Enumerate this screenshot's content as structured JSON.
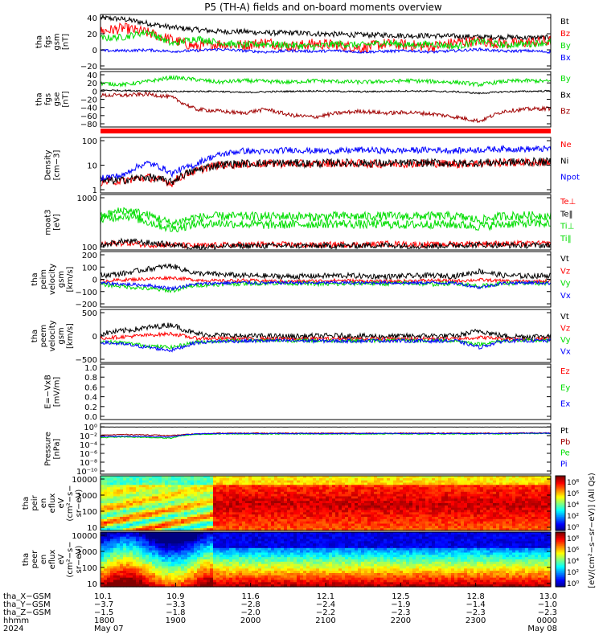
{
  "title": "P5 (TH-A) fields and on-board moments overview",
  "colors": {
    "black": "#000000",
    "red": "#ff0000",
    "green": "#00dd00",
    "blue": "#0000ff",
    "darkred": "#a00000"
  },
  "chart_data": [
    {
      "type": "line",
      "name": "tha_fgs_gsm",
      "ylabel": [
        "tha",
        "fgs",
        "gsm",
        "[nT]"
      ],
      "y_ticks": [
        "40",
        "20",
        "0",
        "−20"
      ],
      "ylim": [
        -25,
        55
      ],
      "series": [
        {
          "name": "Bt",
          "color": "#000000",
          "base": [
            50,
            48,
            42,
            36,
            33,
            30,
            30,
            28,
            28,
            27,
            26,
            25,
            25,
            24,
            24,
            23,
            22,
            22,
            21,
            21
          ],
          "noise": 4
        },
        {
          "name": "Bz",
          "color": "#ff0000",
          "base": [
            30,
            35,
            28,
            18,
            8,
            12,
            10,
            14,
            8,
            12,
            10,
            6,
            12,
            10,
            8,
            14,
            16,
            12,
            14,
            16
          ],
          "noise": 8
        },
        {
          "name": "By",
          "color": "#00dd00",
          "base": [
            20,
            22,
            30,
            12,
            20,
            14,
            10,
            12,
            10,
            8,
            12,
            10,
            14,
            10,
            12,
            8,
            16,
            10,
            12,
            14
          ],
          "noise": 5
        },
        {
          "name": "Bx",
          "color": "#0000ff",
          "base": [
            2,
            2,
            3,
            1,
            2,
            4,
            2,
            0,
            2,
            1,
            2,
            0,
            1,
            2,
            0,
            2,
            4,
            1,
            2,
            0
          ],
          "noise": 2
        }
      ]
    },
    {
      "type": "line",
      "name": "tha_fgs_gse",
      "ylabel": [
        "tha",
        "fgs",
        "gse",
        "[nT]"
      ],
      "y_ticks": [
        "40",
        "20",
        "0",
        "−20",
        "−40",
        "−60",
        "−80"
      ],
      "ylim": [
        -95,
        45
      ],
      "series": [
        {
          "name": "By",
          "color": "#00dd00",
          "base": [
            15,
            12,
            20,
            30,
            25,
            18,
            22,
            20,
            18,
            22,
            20,
            18,
            20,
            22,
            20,
            18,
            12,
            20,
            22,
            20
          ],
          "noise": 5
        },
        {
          "name": "Bx",
          "color": "#000000",
          "base": [
            -2,
            -3,
            -4,
            -6,
            -5,
            -5,
            -8,
            -6,
            -5,
            -4,
            -5,
            -6,
            -5,
            -4,
            -5,
            -6,
            -10,
            -6,
            -5,
            -4
          ],
          "noise": 2
        },
        {
          "name": "Bz",
          "color": "#a00000",
          "base": [
            -15,
            -15,
            -12,
            -20,
            -50,
            -55,
            -60,
            -50,
            -65,
            -70,
            -60,
            -55,
            -60,
            -58,
            -62,
            -70,
            -80,
            -55,
            -50,
            -48
          ],
          "noise": 5
        }
      ]
    },
    {
      "type": "line",
      "name": "Density",
      "ylabel": [
        "Density",
        "[cm−3]"
      ],
      "scale": "log",
      "y_ticks": [
        "100",
        "10",
        "1"
      ],
      "ylim": [
        0.35,
        180
      ],
      "series": [
        {
          "name": "Ne",
          "color": "#ff0000",
          "base": [
            1.2,
            1.4,
            2.0,
            1.0,
            4.0,
            8.0,
            9.0,
            9.5,
            9.5,
            9.0,
            10.0,
            9.5,
            9.0,
            9.5,
            10.0,
            9.0,
            10.0,
            10.5,
            11.0,
            11.0
          ],
          "noise": 0.2
        },
        {
          "name": "Ni",
          "color": "#000000",
          "base": [
            1.3,
            1.5,
            2.1,
            1.1,
            4.2,
            8.5,
            9.5,
            10.0,
            10.0,
            9.5,
            10.5,
            10.0,
            9.5,
            10.0,
            10.5,
            9.5,
            10.5,
            11.0,
            11.5,
            11.5
          ],
          "noise": 0.2
        },
        {
          "name": "Npot",
          "color": "#0000ff",
          "base": [
            2.0,
            2.5,
            10.0,
            3.0,
            8.0,
            25.0,
            40.0,
            35.0,
            45.0,
            40.0,
            38.0,
            45.0,
            40.0,
            42.0,
            45.0,
            40.0,
            45.0,
            50.0,
            48.0,
            50.0
          ],
          "noise": 0.15
        }
      ]
    },
    {
      "type": "line",
      "name": "Temperature",
      "ylabel": [
        "moat3",
        "[eV]"
      ],
      "scale": "log",
      "y_ticks": [
        "1000",
        "100"
      ],
      "ylim": [
        40,
        3000
      ],
      "series": [
        {
          "name": "Te⊥",
          "color": "#ff0000",
          "base": [
            60,
            70,
            60,
            60,
            55,
            58,
            60,
            62,
            60,
            58,
            62,
            60,
            65,
            62,
            60,
            64,
            66,
            65,
            64,
            65
          ],
          "noise": 0.1
        },
        {
          "name": "Te‖",
          "color": "#000000",
          "base": [
            55,
            80,
            70,
            60,
            50,
            52,
            55,
            55,
            56,
            54,
            55,
            56,
            58,
            55,
            54,
            58,
            60,
            58,
            57,
            58
          ],
          "noise": 0.1
        },
        {
          "name": "Ti⊥",
          "color": "#00dd00",
          "base": [
            400,
            600,
            350,
            200,
            300,
            320,
            300,
            280,
            290,
            300,
            310,
            290,
            300,
            280,
            300,
            290,
            250,
            300,
            320,
            310
          ],
          "noise": 0.15
        },
        {
          "name": "Ti‖",
          "color": "#00dd00",
          "base": [
            500,
            900,
            600,
            300,
            500,
            550,
            550,
            540,
            560,
            520,
            560,
            540,
            560,
            550,
            560,
            550,
            400,
            560,
            580,
            570
          ],
          "noise": 0.15
        }
      ]
    },
    {
      "type": "line",
      "name": "tha_peim_velocity_gsm",
      "ylabel": [
        "tha",
        "peim",
        "velocity",
        "gsm",
        "[km/s]"
      ],
      "y_ticks": [
        "200",
        "100",
        "0",
        "−100",
        "−200"
      ],
      "ylim": [
        -230,
        280
      ],
      "series": [
        {
          "name": "Vt",
          "color": "#000000",
          "base": [
            60,
            80,
            120,
            150,
            80,
            70,
            60,
            55,
            50,
            55,
            60,
            55,
            50,
            55,
            60,
            55,
            100,
            60,
            55,
            60
          ],
          "noise": 25
        },
        {
          "name": "Vz",
          "color": "#ff0000",
          "base": [
            10,
            20,
            30,
            40,
            20,
            10,
            15,
            10,
            5,
            10,
            15,
            10,
            5,
            10,
            15,
            10,
            20,
            10,
            5,
            10
          ],
          "noise": 15
        },
        {
          "name": "Vy",
          "color": "#00dd00",
          "base": [
            -20,
            -40,
            -60,
            -80,
            -30,
            -20,
            -15,
            -10,
            -10,
            -15,
            -20,
            -10,
            -15,
            -10,
            -20,
            -10,
            -40,
            -10,
            -15,
            -10
          ],
          "noise": 20
        },
        {
          "name": "Vx",
          "color": "#0000ff",
          "base": [
            -10,
            -20,
            -30,
            -60,
            -20,
            -10,
            -5,
            -10,
            -5,
            -10,
            -5,
            -10,
            -5,
            -10,
            -5,
            -10,
            -50,
            -10,
            -5,
            -10
          ],
          "noise": 15
        }
      ]
    },
    {
      "type": "line",
      "name": "tha_peem_velocity_gsm",
      "ylabel": [
        "tha",
        "peem",
        "velocity",
        "gsm",
        "[km/s]"
      ],
      "y_ticks": [
        "500",
        "0",
        "−500"
      ],
      "ylim": [
        -750,
        1000
      ],
      "series": [
        {
          "name": "Vt",
          "color": "#000000",
          "base": [
            200,
            300,
            400,
            500,
            200,
            150,
            120,
            120,
            110,
            120,
            130,
            120,
            110,
            120,
            130,
            120,
            300,
            120,
            110,
            120
          ],
          "noise": 90
        },
        {
          "name": "Vz",
          "color": "#ff0000",
          "base": [
            50,
            100,
            150,
            200,
            50,
            40,
            30,
            30,
            25,
            30,
            35,
            30,
            25,
            30,
            35,
            30,
            80,
            30,
            25,
            30
          ],
          "noise": 60
        },
        {
          "name": "Vy",
          "color": "#00dd00",
          "base": [
            -50,
            -100,
            -200,
            -250,
            -80,
            -40,
            -30,
            -30,
            -25,
            -30,
            -35,
            -30,
            -25,
            -30,
            -35,
            -30,
            -150,
            -30,
            -25,
            -30
          ],
          "noise": 60
        },
        {
          "name": "Vx",
          "color": "#0000ff",
          "base": [
            -80,
            -150,
            -250,
            -350,
            -100,
            -50,
            -40,
            -35,
            -30,
            -35,
            -40,
            -35,
            -30,
            -35,
            -40,
            -35,
            -250,
            -35,
            -30,
            -35
          ],
          "noise": 60
        }
      ]
    },
    {
      "type": "line",
      "name": "E_minus_VxB",
      "ylabel": [
        "E=−VxB",
        "[mV/m]"
      ],
      "y_ticks": [
        "1.0",
        "0.8",
        "0.6",
        "0.4",
        "0.2",
        "0.0"
      ],
      "ylim": [
        0,
        1
      ],
      "legend": [
        "Ez",
        "Ey",
        "Ex"
      ],
      "legend_colors": [
        "#ff0000",
        "#00dd00",
        "#0000ff"
      ],
      "series": []
    },
    {
      "type": "line",
      "name": "Pressure",
      "ylabel": [
        "Pressure",
        "[nPa]"
      ],
      "scale": "log",
      "y_ticks": [
        "10⁰",
        "10⁻²",
        "10⁻⁴",
        "10⁻⁶",
        "10⁻⁸",
        "10⁻¹⁰"
      ],
      "ylim": [
        1e-11,
        5
      ],
      "series": [
        {
          "name": "Pt",
          "color": "#000000",
          "base": [
            0.8,
            0.8,
            0.8,
            0.8,
            0.8,
            0.8,
            0.8,
            0.8,
            0.8,
            0.8,
            0.8,
            0.8,
            0.8,
            0.8,
            0.8,
            0.8,
            0.8,
            0.8,
            0.8,
            0.8
          ],
          "noise": 0.02
        },
        {
          "name": "Pb",
          "color": "#a00000",
          "base": [
            0.01,
            0.015,
            0.012,
            0.008,
            0.02,
            0.03,
            0.03,
            0.03,
            0.03,
            0.03,
            0.03,
            0.03,
            0.03,
            0.03,
            0.03,
            0.03,
            0.03,
            0.03,
            0.035,
            0.035
          ],
          "noise": 0.1
        },
        {
          "name": "Pe",
          "color": "#00dd00",
          "base": [
            0.003,
            0.004,
            0.003,
            0.002,
            0.015,
            0.02,
            0.02,
            0.02,
            0.02,
            0.02,
            0.02,
            0.02,
            0.02,
            0.02,
            0.02,
            0.02,
            0.02,
            0.02,
            0.025,
            0.025
          ],
          "noise": 0.1
        },
        {
          "name": "Pi",
          "color": "#0000ff",
          "base": [
            0.005,
            0.006,
            0.005,
            0.004,
            0.02,
            0.025,
            0.025,
            0.025,
            0.025,
            0.025,
            0.025,
            0.025,
            0.025,
            0.025,
            0.025,
            0.025,
            0.025,
            0.025,
            0.03,
            0.03
          ],
          "noise": 0.1
        }
      ]
    },
    {
      "type": "heatmap",
      "name": "tha_peir_en_eflux",
      "ylabel": [
        "tha",
        "peir",
        "en",
        "eflux",
        "eV",
        "(cm²−s−",
        "sr−eV)"
      ],
      "scale": "log",
      "y_ticks": [
        "10000",
        "1000",
        "100",
        "10"
      ],
      "ylim": [
        5,
        30000
      ]
    },
    {
      "type": "heatmap",
      "name": "tha_peer_en_eflux",
      "ylabel": [
        "tha",
        "peer",
        "en",
        "eflux",
        "eV",
        "(cm²−s−",
        "sr−eV)"
      ],
      "scale": "log",
      "y_ticks": [
        "10000",
        "1000",
        "100",
        "10"
      ],
      "ylim": [
        5,
        30000
      ]
    }
  ],
  "colorbar": {
    "label": "[eV/(cm²−s−sr−eV)] (All Qs)",
    "ticks": [
      "10⁸",
      "10⁶",
      "10⁴",
      "10²",
      "10⁰"
    ]
  },
  "x_axis": {
    "row_labels": [
      "tha_X−GSM",
      "tha_Y−GSM",
      "tha_Z−GSM",
      "hhmm",
      "2024"
    ],
    "columns": [
      {
        "x": 0.0,
        "values": [
          "10.1",
          "−3.7",
          "−1.5",
          "1800",
          "May 07"
        ]
      },
      {
        "x": 0.1667,
        "values": [
          "10.9",
          "−3.3",
          "−1.8",
          "1900",
          ""
        ]
      },
      {
        "x": 0.3333,
        "values": [
          "11.6",
          "−2.8",
          "−2.0",
          "2000",
          ""
        ]
      },
      {
        "x": 0.5,
        "values": [
          "12.1",
          "−2.4",
          "−2.2",
          "2100",
          ""
        ]
      },
      {
        "x": 0.6667,
        "values": [
          "12.5",
          "−1.9",
          "−2.3",
          "2200",
          ""
        ]
      },
      {
        "x": 0.8333,
        "values": [
          "12.8",
          "−1.4",
          "−2.3",
          "2300",
          ""
        ]
      },
      {
        "x": 1.0,
        "values": [
          "13.0",
          "−1.0",
          "−2.3",
          "0000",
          "May 08"
        ]
      }
    ]
  }
}
